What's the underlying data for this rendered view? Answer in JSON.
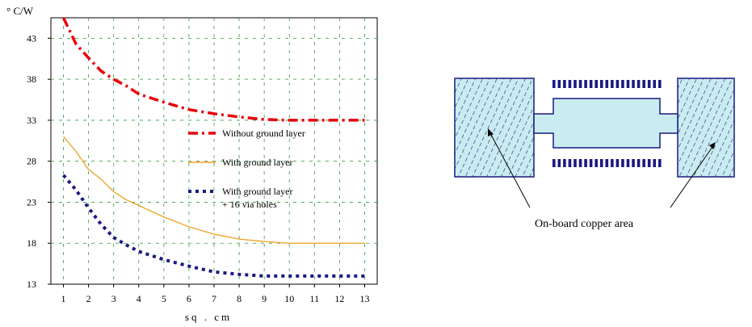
{
  "chart_data": {
    "type": "line",
    "ylabel": "° C/W",
    "xlabel": "sq . cm",
    "xlim": [
      0.5,
      13.5
    ],
    "ylim": [
      13,
      45.5
    ],
    "xticks": [
      1,
      2,
      3,
      4,
      5,
      6,
      7,
      8,
      9,
      10,
      11,
      12,
      13
    ],
    "xtick_labels": [
      "1",
      "2",
      "3",
      "4",
      "5",
      "6",
      "7",
      "8",
      "9",
      "10",
      "11",
      "12",
      "13"
    ],
    "yticks": [
      13,
      18,
      23,
      28,
      33,
      38,
      43
    ],
    "ytick_labels": [
      "13",
      "18",
      "23",
      "28",
      "33",
      "38",
      "43"
    ],
    "grid": true,
    "legend": "center-right",
    "series": [
      {
        "name": "Without ground layer",
        "color": "#e8000b",
        "style": "dashdot",
        "x": [
          1,
          1.5,
          2,
          2.5,
          3,
          3.5,
          4,
          5,
          6,
          7,
          8,
          9,
          10,
          11,
          12,
          13
        ],
        "y": [
          45.5,
          42.3,
          40.6,
          39.0,
          38.0,
          37.2,
          36.2,
          35.2,
          34.3,
          33.8,
          33.4,
          33.1,
          33.0,
          33.0,
          33.0,
          33.0
        ]
      },
      {
        "name": "With ground layer",
        "color": "#f0a020",
        "style": "solid",
        "x": [
          1,
          1.5,
          2,
          2.5,
          3,
          3.5,
          4,
          5,
          6,
          7,
          8,
          9,
          10,
          11,
          12,
          13
        ],
        "y": [
          31.0,
          29.2,
          27.0,
          25.8,
          24.3,
          23.3,
          22.6,
          21.2,
          20.0,
          19.1,
          18.5,
          18.2,
          18.0,
          18.0,
          18.0,
          18.0
        ]
      },
      {
        "name": "With ground layer + 16 via holes",
        "name_lines": [
          "With ground layer",
          "+ 16 via holes"
        ],
        "color": "#1a1a80",
        "style": "dotted",
        "x": [
          1,
          1.5,
          2,
          2.5,
          3,
          3.5,
          4,
          5,
          6,
          7,
          8,
          9,
          10,
          11,
          12,
          13
        ],
        "y": [
          26.3,
          24.5,
          22.3,
          20.3,
          18.7,
          17.8,
          17.0,
          16.0,
          15.2,
          14.5,
          14.2,
          14.0,
          14.0,
          14.0,
          14.0,
          14.0
        ]
      }
    ]
  },
  "diagram": {
    "callout_label": "On-board copper area",
    "pad_fill": "#c9ecf0",
    "outline_color": "#1a1a80"
  }
}
